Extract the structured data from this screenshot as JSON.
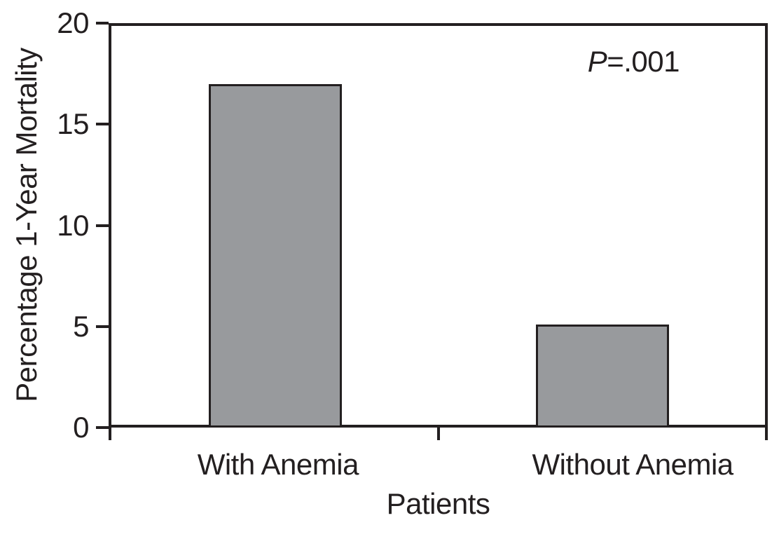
{
  "chart_data": {
    "type": "bar",
    "title": "",
    "ylabel": "Percentage 1-Year Mortality",
    "xlabel": "Patients",
    "categories": [
      "With Anemia",
      "Without Anemia"
    ],
    "values": [
      17,
      5.1
    ],
    "ylim": [
      0,
      20
    ],
    "yticks": [
      20,
      15,
      10,
      5,
      0
    ],
    "grid": false,
    "legend": "none",
    "annotation": {
      "p": "P",
      "rest": "=.001"
    },
    "colors": {
      "bar_fill": "#989a9d",
      "line": "#231f20",
      "background": "#ffffff"
    }
  }
}
